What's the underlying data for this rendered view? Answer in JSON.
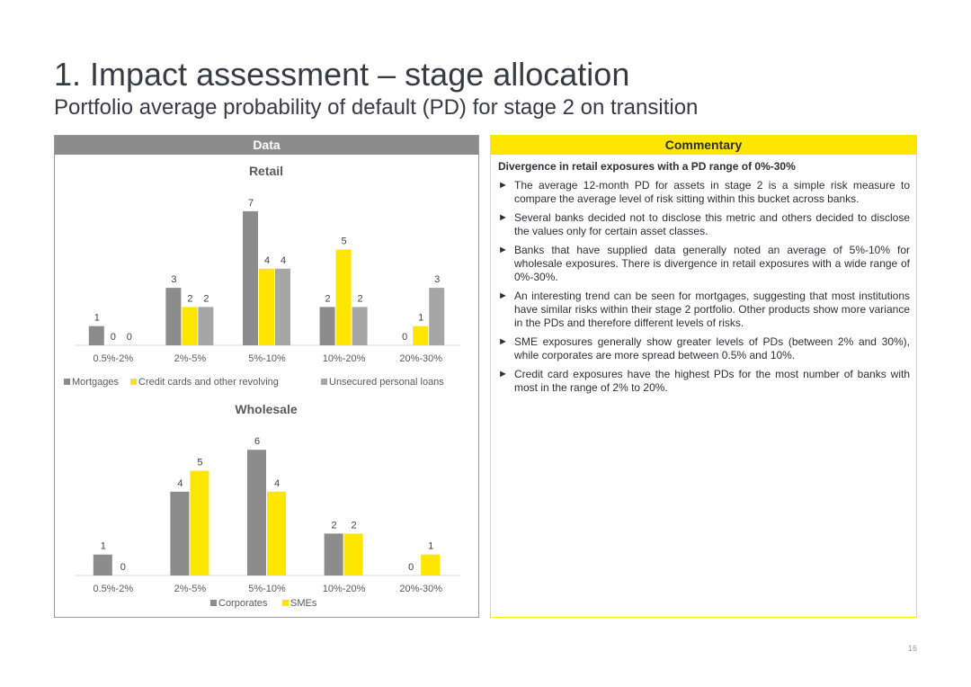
{
  "header": {
    "title": "1. Impact assessment – stage allocation",
    "subtitle": "Portfolio average probability of default (PD) for stage 2 on transition"
  },
  "left_panel": {
    "label": "Data"
  },
  "right_panel": {
    "label": "Commentary",
    "heading": "Divergence in retail exposures with a PD range of 0%-30%",
    "bullets": [
      "The average 12-month PD for assets in stage 2 is a simple risk measure to compare the average level of risk sitting within this bucket across banks.",
      "Several banks decided not to disclose this metric and others decided to disclose the values only for certain asset classes.",
      "Banks that have supplied data generally noted an average of 5%-10% for wholesale exposures. There is divergence in retail exposures with a wide range of 0%-30%.",
      "An interesting trend can be seen for mortgages, suggesting that most institutions have similar risks within their stage 2 portfolio. Other products show more variance in the PDs and therefore different levels of risks.",
      "SME exposures generally show greater levels of PDs (between 2% and 30%), while corporates are more spread between 0.5% and 10%.",
      "Credit card exposures have the highest PDs for the most number of banks with most in the range of 2% to 20%."
    ],
    "bullet_glyph": "►"
  },
  "page_number": "16",
  "colors": {
    "grey": "#8c8c8c",
    "yellow": "#ffe600",
    "lightgrey": "#a6a6a6"
  },
  "chart_data": [
    {
      "type": "bar",
      "title": "Retail",
      "categories": [
        "0.5%-2%",
        "2%-5%",
        "5%-10%",
        "10%-20%",
        "20%-30%"
      ],
      "series": [
        {
          "name": "Mortgages",
          "values": [
            1,
            3,
            7,
            2,
            0
          ],
          "color": "#8c8c8c"
        },
        {
          "name": "Credit cards and other revolving",
          "values": [
            0,
            2,
            4,
            5,
            1
          ],
          "color": "#ffe600"
        },
        {
          "name": "Unsecured personal loans",
          "values": [
            0,
            2,
            4,
            2,
            3
          ],
          "color": "#a6a6a6"
        }
      ],
      "ylim": [
        0,
        7
      ],
      "grid": false,
      "legend": "bottom"
    },
    {
      "type": "bar",
      "title": "Wholesale",
      "categories": [
        "0.5%-2%",
        "2%-5%",
        "5%-10%",
        "10%-20%",
        "20%-30%"
      ],
      "series": [
        {
          "name": "Corporates",
          "values": [
            1,
            4,
            6,
            2,
            0
          ],
          "color": "#8c8c8c"
        },
        {
          "name": "SMEs",
          "values": [
            0,
            5,
            4,
            2,
            1
          ],
          "color": "#ffe600"
        }
      ],
      "ylim": [
        0,
        6
      ],
      "grid": false,
      "legend": "bottom"
    }
  ]
}
